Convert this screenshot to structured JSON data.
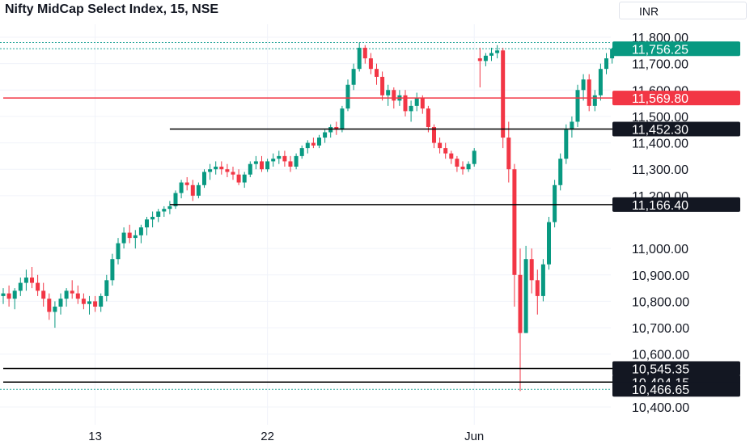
{
  "header": {
    "title": "Nifty MidCap Select Index, 15, NSE",
    "currency": "INR"
  },
  "colors": {
    "up": "#089981",
    "down": "#f23645",
    "axis_text": "#131722",
    "grid": "#f0f3fa",
    "dotted": "#26a69a"
  },
  "chart_data": {
    "type": "candlestick",
    "title": "Nifty MidCap Select Index, 15, NSE",
    "ylim": [
      10400,
      11830
    ],
    "y_ticks": [
      {
        "value": 11800,
        "label": "11,800.00"
      },
      {
        "value": 11700,
        "label": "11,700.00"
      },
      {
        "value": 11600,
        "label": "11,600.00"
      },
      {
        "value": 11500,
        "label": "11,500.00"
      },
      {
        "value": 11400,
        "label": "11,400.00"
      },
      {
        "value": 11300,
        "label": "11,300.00"
      },
      {
        "value": 11200,
        "label": "11,200.00"
      },
      {
        "value": 11000,
        "label": "11,000.00"
      },
      {
        "value": 10900,
        "label": "10,900.00"
      },
      {
        "value": 10800,
        "label": "10,800.00"
      },
      {
        "value": 10700,
        "label": "10,700.00"
      },
      {
        "value": 10600,
        "label": "10,600.00"
      },
      {
        "value": 10400,
        "label": "10,400.00"
      }
    ],
    "x_ticks": [
      {
        "index": 16,
        "label": "13"
      },
      {
        "index": 46,
        "label": "22"
      },
      {
        "index": 82,
        "label": "Jun"
      }
    ],
    "bar_count": 106,
    "last_price": 11756.25,
    "price_labels": [
      {
        "value": 11756.25,
        "label": "11,756.25",
        "style": "last"
      },
      {
        "value": 11569.8,
        "label": "11,569.80",
        "style": "red"
      },
      {
        "value": 11452.3,
        "label": "11,452.30",
        "style": "dark"
      },
      {
        "value": 11166.4,
        "label": "11,166.40",
        "style": "dark"
      },
      {
        "value": 10545.35,
        "label": "10,545.35",
        "style": "dark"
      },
      {
        "value": 10494.15,
        "label": "10,494.15",
        "style": "dark"
      },
      {
        "value": 10466.65,
        "label": "10,466.65",
        "style": "dark"
      }
    ],
    "horizontal_lines": [
      {
        "value": 11569.8,
        "color": "#f23645",
        "from_index": 0
      },
      {
        "value": 11452.3,
        "color": "#000000",
        "from_index": 29
      },
      {
        "value": 11166.4,
        "color": "#000000",
        "from_index": 29
      },
      {
        "value": 10545.35,
        "color": "#000000",
        "from_index": 0
      },
      {
        "value": 10494.15,
        "color": "#000000",
        "from_index": 0
      }
    ],
    "dotted_lines": [
      11756.25,
      11780,
      10466.65
    ],
    "ohlc": [
      [
        10820,
        10850,
        10790,
        10830
      ],
      [
        10830,
        10860,
        10780,
        10810
      ],
      [
        10810,
        10850,
        10770,
        10840
      ],
      [
        10840,
        10890,
        10820,
        10870
      ],
      [
        10870,
        10920,
        10840,
        10890
      ],
      [
        10890,
        10930,
        10850,
        10870
      ],
      [
        10870,
        10900,
        10820,
        10840
      ],
      [
        10840,
        10870,
        10780,
        10810
      ],
      [
        10810,
        10830,
        10730,
        10760
      ],
      [
        10760,
        10800,
        10700,
        10780
      ],
      [
        10780,
        10830,
        10750,
        10810
      ],
      [
        10810,
        10850,
        10780,
        10840
      ],
      [
        10840,
        10880,
        10810,
        10830
      ],
      [
        10830,
        10860,
        10790,
        10810
      ],
      [
        10810,
        10830,
        10770,
        10790
      ],
      [
        10790,
        10820,
        10750,
        10800
      ],
      [
        10800,
        10820,
        10760,
        10780
      ],
      [
        10780,
        10830,
        10760,
        10820
      ],
      [
        10820,
        10900,
        10800,
        10880
      ],
      [
        10880,
        10980,
        10860,
        10960
      ],
      [
        10960,
        11040,
        10940,
        11020
      ],
      [
        11020,
        11080,
        11000,
        11060
      ],
      [
        11060,
        11090,
        11020,
        11040
      ],
      [
        11040,
        11070,
        11000,
        11050
      ],
      [
        11050,
        11090,
        11020,
        11080
      ],
      [
        11080,
        11120,
        11050,
        11110
      ],
      [
        11110,
        11140,
        11080,
        11120
      ],
      [
        11120,
        11150,
        11100,
        11140
      ],
      [
        11140,
        11160,
        11120,
        11150
      ],
      [
        11150,
        11180,
        11130,
        11160
      ],
      [
        11160,
        11220,
        11150,
        11210
      ],
      [
        11210,
        11260,
        11190,
        11250
      ],
      [
        11250,
        11270,
        11220,
        11240
      ],
      [
        11240,
        11260,
        11180,
        11200
      ],
      [
        11200,
        11250,
        11190,
        11240
      ],
      [
        11240,
        11300,
        11230,
        11290
      ],
      [
        11290,
        11320,
        11260,
        11300
      ],
      [
        11300,
        11330,
        11280,
        11310
      ],
      [
        11310,
        11330,
        11280,
        11300
      ],
      [
        11300,
        11320,
        11270,
        11290
      ],
      [
        11290,
        11310,
        11260,
        11280
      ],
      [
        11280,
        11300,
        11240,
        11250
      ],
      [
        11250,
        11290,
        11230,
        11280
      ],
      [
        11280,
        11330,
        11270,
        11320
      ],
      [
        11320,
        11350,
        11300,
        11330
      ],
      [
        11330,
        11350,
        11290,
        11300
      ],
      [
        11300,
        11340,
        11290,
        11330
      ],
      [
        11330,
        11360,
        11310,
        11340
      ],
      [
        11340,
        11370,
        11320,
        11350
      ],
      [
        11350,
        11370,
        11310,
        11330
      ],
      [
        11330,
        11350,
        11290,
        11310
      ],
      [
        11310,
        11360,
        11300,
        11350
      ],
      [
        11350,
        11390,
        11340,
        11380
      ],
      [
        11380,
        11410,
        11360,
        11400
      ],
      [
        11400,
        11420,
        11380,
        11390
      ],
      [
        11390,
        11430,
        11380,
        11420
      ],
      [
        11420,
        11450,
        11400,
        11440
      ],
      [
        11440,
        11470,
        11420,
        11460
      ],
      [
        11460,
        11480,
        11430,
        11450
      ],
      [
        11450,
        11540,
        11440,
        11530
      ],
      [
        11530,
        11640,
        11520,
        11620
      ],
      [
        11620,
        11700,
        11600,
        11680
      ],
      [
        11680,
        11780,
        11670,
        11760
      ],
      [
        11760,
        11770,
        11700,
        11720
      ],
      [
        11720,
        11740,
        11660,
        11680
      ],
      [
        11680,
        11700,
        11620,
        11650
      ],
      [
        11650,
        11670,
        11560,
        11580
      ],
      [
        11580,
        11620,
        11540,
        11600
      ],
      [
        11600,
        11610,
        11530,
        11560
      ],
      [
        11560,
        11600,
        11540,
        11580
      ],
      [
        11580,
        11600,
        11500,
        11520
      ],
      [
        11520,
        11560,
        11480,
        11540
      ],
      [
        11540,
        11590,
        11520,
        11570
      ],
      [
        11570,
        11580,
        11510,
        11530
      ],
      [
        11530,
        11540,
        11440,
        11460
      ],
      [
        11460,
        11470,
        11380,
        11400
      ],
      [
        11400,
        11420,
        11360,
        11380
      ],
      [
        11380,
        11400,
        11340,
        11360
      ],
      [
        11360,
        11370,
        11320,
        11340
      ],
      [
        11340,
        11350,
        11290,
        11310
      ],
      [
        11310,
        11330,
        11280,
        11300
      ],
      [
        11300,
        11330,
        11290,
        11320
      ],
      [
        11320,
        11380,
        11310,
        11370
      ],
      [
        11720,
        11760,
        11610,
        11710
      ],
      [
        11710,
        11740,
        11690,
        11730
      ],
      [
        11730,
        11760,
        11710,
        11740
      ],
      [
        11740,
        11770,
        11720,
        11750
      ],
      [
        11750,
        11760,
        11380,
        11420
      ],
      [
        11420,
        11480,
        11250,
        11300
      ],
      [
        11300,
        11320,
        10780,
        10900
      ],
      [
        10900,
        11000,
        10460,
        10680
      ],
      [
        10680,
        11010,
        10680,
        10960
      ],
      [
        10960,
        11000,
        10830,
        10880
      ],
      [
        10880,
        10920,
        10750,
        10820
      ],
      [
        10820,
        10960,
        10800,
        10940
      ],
      [
        10940,
        11120,
        10920,
        11100
      ],
      [
        11100,
        11260,
        11080,
        11240
      ],
      [
        11240,
        11360,
        11220,
        11340
      ],
      [
        11340,
        11470,
        11320,
        11450
      ],
      [
        11450,
        11500,
        11420,
        11480
      ],
      [
        11480,
        11620,
        11460,
        11600
      ],
      [
        11600,
        11660,
        11560,
        11640
      ],
      [
        11640,
        11660,
        11520,
        11540
      ],
      [
        11540,
        11600,
        11520,
        11580
      ],
      [
        11580,
        11700,
        11560,
        11680
      ],
      [
        11680,
        11740,
        11660,
        11720
      ],
      [
        11720,
        11760,
        11700,
        11756.25
      ]
    ]
  }
}
